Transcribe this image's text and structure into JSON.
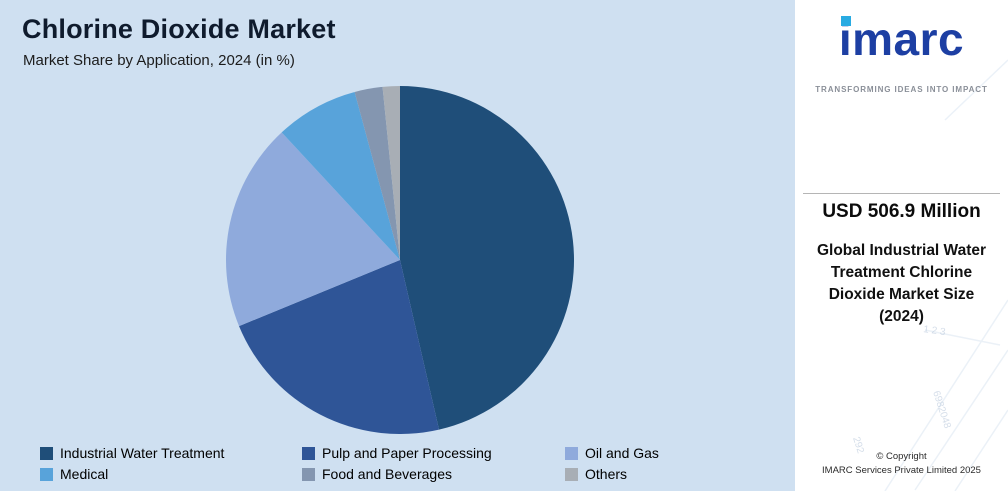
{
  "header": {
    "title": "Chlorine Dioxide Market",
    "subtitle": "Market Share by Application, 2024 (in %)"
  },
  "chart_data": {
    "type": "pie",
    "title": "Chlorine Dioxide Market",
    "subtitle": "Market Share by Application, 2024 (in %)",
    "unit": "%",
    "legend_position": "bottom",
    "start_angle_deg": 0,
    "direction": "clockwise",
    "note": "No numeric data labels are shown on the chart; slice values estimated from arc angles.",
    "segments": [
      {
        "label": "Industrial Water Treatment",
        "value": 46.4,
        "color": "#1f4e79"
      },
      {
        "label": "Pulp and Paper Processing",
        "value": 22.4,
        "color": "#2f5597"
      },
      {
        "label": "Oil and Gas",
        "value": 19.3,
        "color": "#8faadc"
      },
      {
        "label": "Medical",
        "value": 7.7,
        "color": "#58a3da"
      },
      {
        "label": "Food and Beverages",
        "value": 2.6,
        "color": "#8496b0"
      },
      {
        "label": "Others",
        "value": 1.6,
        "color": "#a8aeb5"
      }
    ]
  },
  "brand_panel": {
    "logo_text": "imarc",
    "tagline": "TRANSFORMING IDEAS INTO IMPACT",
    "market_value": "USD 506.9 Million",
    "market_label": "Global Industrial Water Treatment Chlorine Dioxide Market Size (2024)",
    "copyright_line1": "© Copyright",
    "copyright_line2": "IMARC Services Private Limited 2025",
    "watermark_digits_1": "6982048",
    "watermark_digits_2": "292",
    "watermark_digits_3": "1  2  3"
  },
  "colors": {
    "left_background": "#cfe0f1",
    "panel_background": "#ffffff",
    "logo_blue": "#1d3fa3",
    "accent_cyan": "#29abe2",
    "title_text": "#0f1b2d"
  }
}
